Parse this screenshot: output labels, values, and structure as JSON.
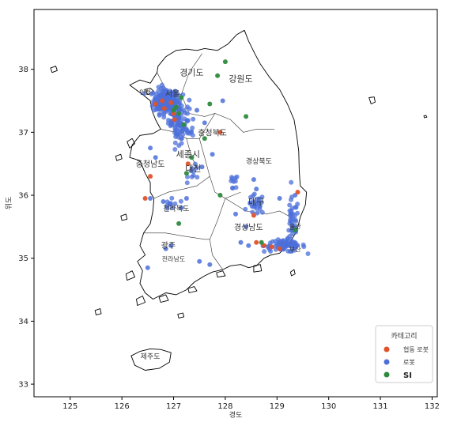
{
  "map": {
    "xlabel": "경도",
    "ylabel": "위도",
    "xticks": [
      125,
      126,
      127,
      128,
      129,
      130,
      131,
      132
    ],
    "yticks": [
      33,
      34,
      35,
      36,
      37,
      38
    ],
    "xlim": [
      124.3,
      132.1
    ],
    "ylim": [
      32.8,
      38.95
    ]
  },
  "regions": [
    {
      "label": "경기도",
      "lon": 127.35,
      "lat": 37.9,
      "size": 11,
      "color": "#333333"
    },
    {
      "label": "강원도",
      "lon": 128.3,
      "lat": 37.8,
      "size": 11,
      "color": "#333333"
    },
    {
      "label": "인천",
      "lon": 126.45,
      "lat": 37.6,
      "size": 8,
      "color": "#333333"
    },
    {
      "label": "서울",
      "lon": 126.98,
      "lat": 37.57,
      "size": 10,
      "color": "#ffffff"
    },
    {
      "label": "충청북도",
      "lon": 127.75,
      "lat": 36.95,
      "size": 10,
      "color": "#333333"
    },
    {
      "label": "경상북도",
      "lon": 128.65,
      "lat": 36.5,
      "size": 9,
      "color": "#333333"
    },
    {
      "label": "충청남도",
      "lon": 126.55,
      "lat": 36.45,
      "size": 10,
      "color": "#333333"
    },
    {
      "label": "세종시",
      "lon": 127.28,
      "lat": 36.6,
      "size": 11,
      "color": "#2e8b3d"
    },
    {
      "label": "대전",
      "lon": 127.38,
      "lat": 36.38,
      "size": 11,
      "color": "#2e8b3d"
    },
    {
      "label": "대구",
      "lon": 128.6,
      "lat": 35.85,
      "size": 11,
      "color": "#ffffff"
    },
    {
      "label": "전라북도",
      "lon": 127.05,
      "lat": 35.75,
      "size": 9,
      "color": "#333333"
    },
    {
      "label": "경상남도",
      "lon": 128.45,
      "lat": 35.45,
      "size": 10,
      "color": "#333333"
    },
    {
      "label": "울산",
      "lon": 129.35,
      "lat": 35.47,
      "size": 8,
      "color": "#333333"
    },
    {
      "label": "부산",
      "lon": 129.35,
      "lat": 35.1,
      "size": 8,
      "color": "#333333"
    },
    {
      "label": "광주",
      "lon": 126.9,
      "lat": 35.16,
      "size": 10,
      "color": "#333333"
    },
    {
      "label": "전라남도",
      "lon": 127.0,
      "lat": 34.95,
      "size": 8,
      "color": "#333333"
    },
    {
      "label": "제주도",
      "lon": 126.55,
      "lat": 33.4,
      "size": 9,
      "color": "#333333"
    }
  ],
  "legend": {
    "title": "카테고리",
    "items": [
      {
        "label": "협동 로봇",
        "color": "#e0522a"
      },
      {
        "label": "로봇",
        "color": "#4c6fd9"
      },
      {
        "label": "SI",
        "color": "#2e8b3d"
      }
    ]
  },
  "clusters": {
    "robot": [
      {
        "lon": 126.85,
        "lat": 37.5,
        "slon": 0.12,
        "slat": 0.1,
        "n": 190
      },
      {
        "lon": 127.1,
        "lat": 37.25,
        "slon": 0.1,
        "slat": 0.15,
        "n": 70
      },
      {
        "lon": 127.15,
        "lat": 37.0,
        "slon": 0.12,
        "slat": 0.08,
        "n": 30
      },
      {
        "lon": 129.15,
        "lat": 35.2,
        "slon": 0.2,
        "slat": 0.05,
        "n": 70
      },
      {
        "lon": 129.3,
        "lat": 35.55,
        "slon": 0.06,
        "slat": 0.2,
        "n": 40
      },
      {
        "lon": 128.6,
        "lat": 35.85,
        "slon": 0.08,
        "slat": 0.08,
        "n": 25
      },
      {
        "lon": 128.15,
        "lat": 36.15,
        "slon": 0.05,
        "slat": 0.1,
        "n": 10
      },
      {
        "lon": 127.4,
        "lat": 36.35,
        "slon": 0.06,
        "slat": 0.06,
        "n": 10
      },
      {
        "lon": 126.95,
        "lat": 35.85,
        "slon": 0.08,
        "slat": 0.08,
        "n": 10
      }
    ],
    "robot_points": [
      [
        126.55,
        35.95
      ],
      [
        126.8,
        35.9
      ],
      [
        127.15,
        35.8
      ],
      [
        127.25,
        35.95
      ],
      [
        126.95,
        35.2
      ],
      [
        126.85,
        35.15
      ],
      [
        126.5,
        34.85
      ],
      [
        127.5,
        34.95
      ],
      [
        127.7,
        34.9
      ],
      [
        128.3,
        35.25
      ],
      [
        128.45,
        35.2
      ],
      [
        128.2,
        35.7
      ],
      [
        128.4,
        35.5
      ],
      [
        128.6,
        36.1
      ],
      [
        129.35,
        36.0
      ],
      [
        127.6,
        37.15
      ],
      [
        127.45,
        37.35
      ],
      [
        127.95,
        37.5
      ],
      [
        126.55,
        36.75
      ],
      [
        127.75,
        36.65
      ],
      [
        126.65,
        36.6
      ],
      [
        127.55,
        36.45
      ],
      [
        129.05,
        35.95
      ],
      [
        128.55,
        36.25
      ]
    ],
    "cobot_points": [
      [
        126.65,
        37.45
      ],
      [
        126.82,
        37.38
      ],
      [
        126.95,
        37.47
      ],
      [
        127.0,
        37.3
      ],
      [
        127.02,
        37.2
      ],
      [
        126.78,
        37.5
      ],
      [
        127.28,
        36.5
      ],
      [
        126.55,
        36.3
      ],
      [
        126.45,
        35.95
      ],
      [
        127.9,
        37.0
      ],
      [
        128.55,
        35.68
      ],
      [
        129.4,
        36.05
      ],
      [
        128.75,
        35.2
      ],
      [
        128.9,
        35.18
      ],
      [
        129.05,
        35.15
      ],
      [
        128.6,
        35.25
      ]
    ],
    "si_points": [
      [
        127.0,
        37.35
      ],
      [
        127.1,
        37.3
      ],
      [
        127.05,
        37.4
      ],
      [
        127.2,
        37.12
      ],
      [
        128.0,
        38.12
      ],
      [
        127.85,
        37.9
      ],
      [
        127.7,
        37.45
      ],
      [
        128.4,
        37.25
      ],
      [
        127.35,
        36.6
      ],
      [
        127.25,
        36.35
      ],
      [
        127.9,
        36.0
      ],
      [
        127.1,
        35.55
      ],
      [
        129.35,
        35.45
      ],
      [
        128.7,
        35.25
      ],
      [
        127.6,
        36.9
      ],
      [
        127.15,
        37.55
      ]
    ]
  }
}
